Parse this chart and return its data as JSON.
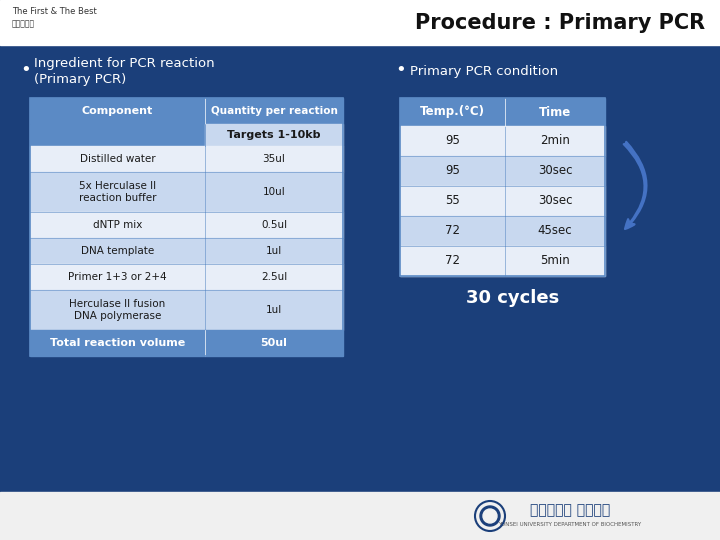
{
  "title": "Procedure : Primary PCR",
  "bg_color": "#1b3f7a",
  "top_bar_color": "#ffffff",
  "bottom_bar_color": "#f0f0f0",
  "title_color": "#111111",
  "bullet1_line1": "Ingredient for PCR reaction",
  "bullet1_line2": "(Primary PCR)",
  "bullet2": "Primary PCR condition",
  "table1_headers": [
    "Component",
    "Quantity per reaction"
  ],
  "table1_subheader": "Targets 1-10kb",
  "table1_rows": [
    [
      "Distilled water",
      "35ul"
    ],
    [
      "5x Herculase II\nreaction buffer",
      "10ul"
    ],
    [
      "dNTP mix",
      "0.5ul"
    ],
    [
      "DNA template",
      "1ul"
    ],
    [
      "Primer 1+3 or 2+4",
      "2.5ul"
    ],
    [
      "Herculase II fusion\nDNA polymerase",
      "1ul"
    ]
  ],
  "table1_footer": [
    "Total reaction volume",
    "50ul"
  ],
  "table2_headers": [
    "Temp.(°C)",
    "Time"
  ],
  "table2_rows": [
    [
      "95",
      "2min"
    ],
    [
      "95",
      "30sec"
    ],
    [
      "55",
      "30sec"
    ],
    [
      "72",
      "45sec"
    ],
    [
      "72",
      "5min"
    ]
  ],
  "cycles_text": "30 cycles",
  "table_header_bg": "#5b8ac5",
  "table_subh_bg": "#c8d8ef",
  "table_row_light": "#c8d8ef",
  "table_row_white": "#e8eef8",
  "table_border": "#5b8ac5",
  "table_footer_bg": "#5b8ac5",
  "arrow_color": "#4472c4",
  "white": "#ffffff",
  "dark_text": "#1a1a1a"
}
